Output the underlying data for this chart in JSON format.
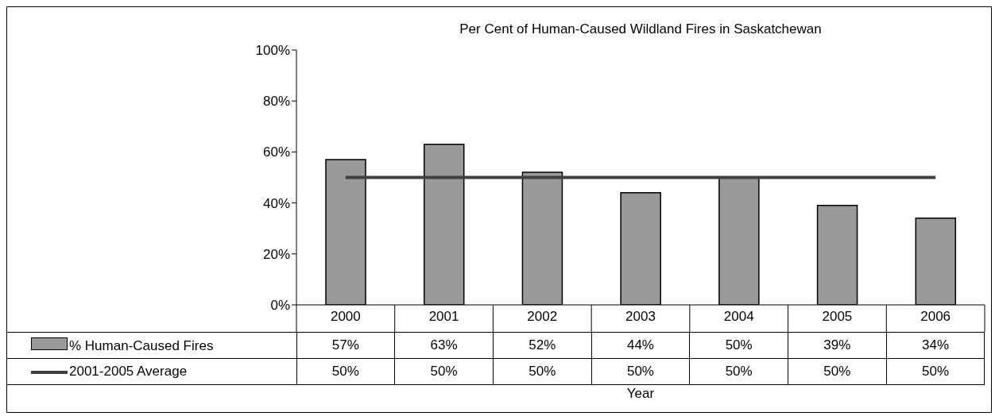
{
  "chart_data": {
    "type": "bar",
    "title": "Per Cent of Human-Caused Wildland Fires in Saskatchewan",
    "xlabel": "Year",
    "categories": [
      "2000",
      "2001",
      "2002",
      "2003",
      "2004",
      "2005",
      "2006"
    ],
    "series": [
      {
        "name": "% Human-Caused Fires",
        "color": "#999999",
        "values": [
          57,
          63,
          52,
          44,
          50,
          39,
          34
        ],
        "value_labels": [
          "57%",
          "63%",
          "52%",
          "44%",
          "50%",
          "39%",
          "34%"
        ]
      },
      {
        "name": "2001-2005 Average",
        "type": "line",
        "color": "#404040",
        "values": [
          50,
          50,
          50,
          50,
          50,
          50,
          50
        ],
        "value_labels": [
          "50%",
          "50%",
          "50%",
          "50%",
          "50%",
          "50%",
          "50%"
        ]
      }
    ],
    "ylim": [
      0,
      100
    ],
    "yticks": [
      {
        "value": 0,
        "label": "0%"
      },
      {
        "value": 20,
        "label": "20%"
      },
      {
        "value": 40,
        "label": "40%"
      },
      {
        "value": 60,
        "label": "60%"
      },
      {
        "value": 80,
        "label": "80%"
      },
      {
        "value": 100,
        "label": "100%"
      }
    ],
    "grid": false,
    "legend": "bottom left",
    "marker": "none",
    "line_style": "solid"
  }
}
